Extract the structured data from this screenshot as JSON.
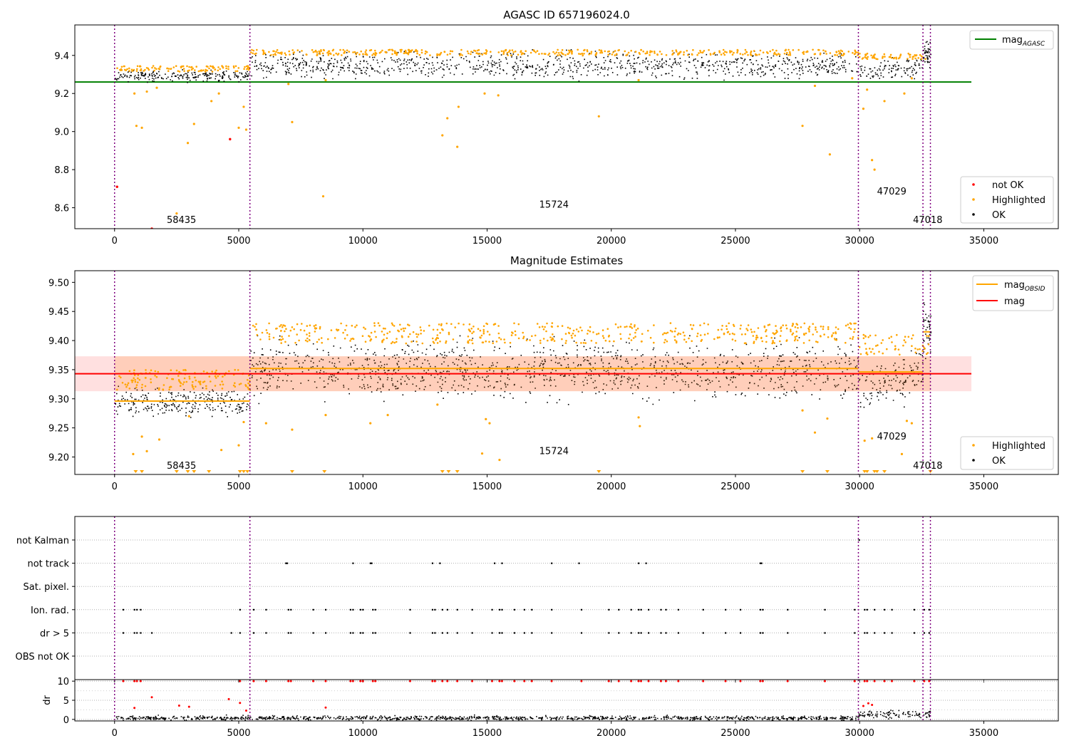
{
  "chart_data": [
    {
      "type": "scatter",
      "title": "AGASC ID 657196024.0",
      "xlabel": "",
      "ylabel": "",
      "xlim": [
        -1600,
        38000
      ],
      "ylim": [
        8.49,
        9.56
      ],
      "xticks": [
        0,
        5000,
        10000,
        15000,
        20000,
        25000,
        30000,
        35000
      ],
      "xtick_labels": [
        "0",
        "5000",
        "10000",
        "15000",
        "20000",
        "25000",
        "30000",
        "35000"
      ],
      "yticks": [
        8.6,
        8.8,
        9.0,
        9.2,
        9.4
      ],
      "ytick_labels": [
        "8.6",
        "8.8",
        "9.0",
        "9.2",
        "9.4"
      ],
      "grid": false,
      "legend_upper": {
        "placement": "upper-right",
        "entries": [
          {
            "label": "mag",
            "subscript": "AGASC",
            "color": "#008000",
            "kind": "line"
          }
        ]
      },
      "legend_lower": {
        "placement": "lower-right",
        "entries": [
          {
            "label": "not OK",
            "color": "#ff0000",
            "kind": "point"
          },
          {
            "label": "Highlighted",
            "color": "#ffa500",
            "kind": "point"
          },
          {
            "label": "OK",
            "color": "#000000",
            "kind": "point"
          }
        ]
      },
      "hlines": [
        {
          "y": 9.26,
          "x_range": [
            -1600,
            34500
          ],
          "color": "#008000"
        }
      ],
      "obs_boundaries": [
        0,
        5450,
        29950,
        32550,
        32850
      ],
      "obsid_labels": [
        {
          "text": "58435",
          "x": 2100,
          "y": 8.52
        },
        {
          "text": "15724",
          "x": 17100,
          "y": 8.6
        },
        {
          "text": "47029",
          "x": 30700,
          "y": 8.67
        },
        {
          "text": "47018",
          "x": 32150,
          "y": 8.52
        }
      ],
      "ok_segments": [
        {
          "x_range": [
            0,
            5450
          ],
          "center": 9.295,
          "spread": 0.03
        },
        {
          "x_range": [
            5450,
            29950
          ],
          "center": 9.35,
          "spread": 0.07
        },
        {
          "x_range": [
            29950,
            32550
          ],
          "center": 9.33,
          "spread": 0.06,
          "slope": 0.04
        },
        {
          "x_range": [
            32550,
            32850
          ],
          "center": 9.41,
          "spread": 0.06
        }
      ],
      "not_ok_points": [
        {
          "x": 100,
          "y": 8.71
        },
        {
          "x": 1500,
          "y": 8.49
        },
        {
          "x": 4650,
          "y": 8.96
        }
      ],
      "highlighted_points": [
        {
          "x": 800,
          "y": 9.2
        },
        {
          "x": 880,
          "y": 9.03
        },
        {
          "x": 1100,
          "y": 9.02
        },
        {
          "x": 1300,
          "y": 9.21
        },
        {
          "x": 1700,
          "y": 9.23
        },
        {
          "x": 2500,
          "y": 8.57
        },
        {
          "x": 2950,
          "y": 8.94
        },
        {
          "x": 3200,
          "y": 9.04
        },
        {
          "x": 3900,
          "y": 9.16
        },
        {
          "x": 4200,
          "y": 9.2
        },
        {
          "x": 5000,
          "y": 9.02
        },
        {
          "x": 5200,
          "y": 9.13
        },
        {
          "x": 5300,
          "y": 9.01
        },
        {
          "x": 7150,
          "y": 9.05
        },
        {
          "x": 7000,
          "y": 9.25
        },
        {
          "x": 8400,
          "y": 8.66
        },
        {
          "x": 8500,
          "y": 9.27
        },
        {
          "x": 13200,
          "y": 8.98
        },
        {
          "x": 13400,
          "y": 9.07
        },
        {
          "x": 13800,
          "y": 8.92
        },
        {
          "x": 13850,
          "y": 9.13
        },
        {
          "x": 14900,
          "y": 9.2
        },
        {
          "x": 15450,
          "y": 9.19
        },
        {
          "x": 19500,
          "y": 9.08
        },
        {
          "x": 21100,
          "y": 9.27
        },
        {
          "x": 27700,
          "y": 9.03
        },
        {
          "x": 28200,
          "y": 9.24
        },
        {
          "x": 28800,
          "y": 8.88
        },
        {
          "x": 29700,
          "y": 9.28
        },
        {
          "x": 30150,
          "y": 9.12
        },
        {
          "x": 30300,
          "y": 9.22
        },
        {
          "x": 30500,
          "y": 8.85
        },
        {
          "x": 30600,
          "y": 8.8
        },
        {
          "x": 31000,
          "y": 9.16
        },
        {
          "x": 31800,
          "y": 9.2
        },
        {
          "x": 32100,
          "y": 9.28
        }
      ]
    },
    {
      "type": "scatter",
      "title": "Magnitude Estimates",
      "xlabel": "",
      "ylabel": "",
      "xlim": [
        -1600,
        38000
      ],
      "ylim": [
        9.17,
        9.52
      ],
      "xticks": [
        0,
        5000,
        10000,
        15000,
        20000,
        25000,
        30000,
        35000
      ],
      "xtick_labels": [
        "0",
        "5000",
        "10000",
        "15000",
        "20000",
        "25000",
        "30000",
        "35000"
      ],
      "yticks": [
        9.2,
        9.25,
        9.3,
        9.35,
        9.4,
        9.45,
        9.5
      ],
      "ytick_labels": [
        "9.20",
        "9.25",
        "9.30",
        "9.35",
        "9.40",
        "9.45",
        "9.50"
      ],
      "grid": false,
      "legend_upper": {
        "placement": "upper-right",
        "entries": [
          {
            "label": "mag",
            "subscript": "OBSID",
            "color": "#ffa500",
            "kind": "line"
          },
          {
            "label": "mag",
            "subscript": "",
            "color": "#ff0000",
            "kind": "line"
          }
        ]
      },
      "legend_lower": {
        "placement": "lower-right",
        "entries": [
          {
            "label": "Highlighted",
            "color": "#ffa500",
            "kind": "point"
          },
          {
            "label": "OK",
            "color": "#000000",
            "kind": "point"
          }
        ]
      },
      "mag_line": {
        "y": 9.343,
        "x_range": [
          -1600,
          34500
        ],
        "band": [
          9.313,
          9.373
        ],
        "color": "#ff0000"
      },
      "obsid_mags": [
        {
          "x_range": [
            0,
            5450
          ],
          "y": 9.296
        },
        {
          "x_range": [
            5450,
            29950
          ],
          "y": 9.352
        },
        {
          "x_range": [
            29950,
            32550
          ],
          "y": 9.346
        },
        {
          "x_range": [
            32550,
            32850
          ],
          "y": 9.415
        }
      ],
      "obs_boundaries": [
        0,
        5450,
        29950,
        32550,
        32850
      ],
      "obsid_labels": [
        {
          "text": "58435",
          "x": 2100,
          "y": 9.18
        },
        {
          "text": "15724",
          "x": 17100,
          "y": 9.205
        },
        {
          "text": "47029",
          "x": 30700,
          "y": 9.23
        },
        {
          "text": "47018",
          "x": 32150,
          "y": 9.18
        }
      ],
      "ok_segments": [
        {
          "x_range": [
            0,
            5450
          ],
          "center": 9.295,
          "spread": 0.025
        },
        {
          "x_range": [
            5450,
            29950
          ],
          "center": 9.35,
          "spread": 0.05
        },
        {
          "x_range": [
            29950,
            32550
          ],
          "center": 9.33,
          "spread": 0.04,
          "slope": 0.04
        },
        {
          "x_range": [
            32550,
            32850
          ],
          "center": 9.42,
          "spread": 0.05
        }
      ],
      "highlighted_points": [
        {
          "x": 750,
          "y": 9.205
        },
        {
          "x": 1100,
          "y": 9.235
        },
        {
          "x": 1300,
          "y": 9.21
        },
        {
          "x": 1800,
          "y": 9.23
        },
        {
          "x": 3000,
          "y": 9.27
        },
        {
          "x": 4300,
          "y": 9.212
        },
        {
          "x": 5000,
          "y": 9.22
        },
        {
          "x": 5200,
          "y": 9.26
        },
        {
          "x": 6100,
          "y": 9.258
        },
        {
          "x": 7150,
          "y": 9.247
        },
        {
          "x": 8500,
          "y": 9.272
        },
        {
          "x": 10300,
          "y": 9.258
        },
        {
          "x": 11000,
          "y": 9.272
        },
        {
          "x": 13000,
          "y": 9.29
        },
        {
          "x": 14800,
          "y": 9.206
        },
        {
          "x": 14950,
          "y": 9.265
        },
        {
          "x": 15100,
          "y": 9.258
        },
        {
          "x": 15500,
          "y": 9.195
        },
        {
          "x": 21100,
          "y": 9.268
        },
        {
          "x": 21150,
          "y": 9.253
        },
        {
          "x": 27700,
          "y": 9.28
        },
        {
          "x": 28200,
          "y": 9.242
        },
        {
          "x": 28700,
          "y": 9.266
        },
        {
          "x": 30200,
          "y": 9.228
        },
        {
          "x": 30500,
          "y": 9.232
        },
        {
          "x": 31700,
          "y": 9.205
        },
        {
          "x": 31900,
          "y": 9.262
        },
        {
          "x": 32100,
          "y": 9.258
        }
      ],
      "clipped_markers_x": [
        850,
        1100,
        2500,
        2950,
        3200,
        3800,
        5050,
        5200,
        5350,
        7150,
        8450,
        13200,
        13450,
        13800,
        19500,
        27700,
        28700,
        30200,
        30300,
        30600,
        30700,
        31000,
        32850
      ]
    },
    {
      "type": "scatter",
      "title": "",
      "xlabel": "",
      "ylabel": "",
      "xlim": [
        -1600,
        38000
      ],
      "xticks": [
        0,
        5000,
        10000,
        15000,
        20000,
        25000,
        30000,
        35000
      ],
      "xtick_labels": [
        "0",
        "5000",
        "10000",
        "15000",
        "20000",
        "25000",
        "30000",
        "35000"
      ],
      "flag_rows": [
        "not Kalman",
        "not track",
        "Sat. pixel.",
        "Ion. rad.",
        "dr > 5",
        "OBS not OK"
      ],
      "grid": true,
      "obs_boundaries": [
        0,
        5450,
        29950,
        32550,
        32850
      ],
      "flag_points": {
        "not Kalman": [
          29980
        ],
        "not track": [
          6900,
          6950,
          9600,
          10300,
          10350,
          12800,
          13100,
          15300,
          15600,
          17600,
          18700,
          21100,
          21400,
          26000,
          26050
        ],
        "Sat. pixel.": [],
        "Ion. rad.": [
          350,
          800,
          900,
          1050,
          5050,
          5600,
          6100,
          7000,
          7100,
          8000,
          8500,
          9500,
          9600,
          9900,
          10000,
          10400,
          10500,
          11900,
          12800,
          12900,
          13200,
          13400,
          13800,
          14400,
          15200,
          15500,
          15600,
          16100,
          16500,
          16800,
          17600,
          18800,
          19900,
          20300,
          20800,
          21100,
          21200,
          21500,
          22000,
          22200,
          22700,
          23700,
          24600,
          25200,
          26000,
          26100,
          27100,
          28600,
          29800,
          30200,
          30300,
          30600,
          31000,
          31300,
          32200,
          32600,
          32800
        ],
        "dr > 5": [
          350,
          800,
          900,
          1050,
          1500,
          4700,
          5050,
          5600,
          6100,
          7000,
          7100,
          8000,
          8500,
          9500,
          9600,
          9900,
          10000,
          10400,
          10500,
          11900,
          12800,
          12900,
          13200,
          13400,
          13800,
          14400,
          15200,
          15500,
          15600,
          16100,
          16500,
          16800,
          17600,
          18800,
          19900,
          20300,
          20800,
          21100,
          21200,
          21500,
          22000,
          22200,
          22700,
          23700,
          24600,
          25200,
          26000,
          26100,
          27100,
          28600,
          29800,
          30200,
          30300,
          30600,
          31000,
          31300,
          32200,
          32600,
          32800
        ],
        "OBS not OK": []
      }
    },
    {
      "type": "scatter",
      "title": "",
      "xlabel": "",
      "ylabel": "dr",
      "xlim": [
        -1600,
        38000
      ],
      "ylim": [
        -0.4,
        10.4
      ],
      "yticks": [
        0,
        5,
        10
      ],
      "ytick_labels": [
        "0",
        "5",
        "10"
      ],
      "xticks": [
        0,
        5000,
        10000,
        15000,
        20000,
        25000,
        30000,
        35000
      ],
      "xtick_labels": [
        "0",
        "5000",
        "10000",
        "15000",
        "20000",
        "25000",
        "30000",
        "35000"
      ],
      "grid": true,
      "obs_boundaries": [
        0,
        5450,
        29950,
        32550,
        32850
      ],
      "ok_segments": [
        {
          "x_range": [
            0,
            29950
          ],
          "center": 0.5,
          "spread": 0.6
        },
        {
          "x_range": [
            29950,
            32850
          ],
          "center": 1.5,
          "spread": 1.0
        }
      ],
      "red_points": [
        {
          "x": 350,
          "y": 10
        },
        {
          "x": 800,
          "y": 10
        },
        {
          "x": 900,
          "y": 10
        },
        {
          "x": 1050,
          "y": 10
        },
        {
          "x": 5050,
          "y": 10
        },
        {
          "x": 5600,
          "y": 10
        },
        {
          "x": 6100,
          "y": 10
        },
        {
          "x": 7000,
          "y": 10
        },
        {
          "x": 7100,
          "y": 10
        },
        {
          "x": 8000,
          "y": 10
        },
        {
          "x": 8500,
          "y": 10
        },
        {
          "x": 9500,
          "y": 10
        },
        {
          "x": 9600,
          "y": 10
        },
        {
          "x": 9900,
          "y": 10
        },
        {
          "x": 10000,
          "y": 10
        },
        {
          "x": 10400,
          "y": 10
        },
        {
          "x": 10500,
          "y": 10
        },
        {
          "x": 11900,
          "y": 10
        },
        {
          "x": 12800,
          "y": 10
        },
        {
          "x": 12900,
          "y": 10
        },
        {
          "x": 13200,
          "y": 10
        },
        {
          "x": 13400,
          "y": 10
        },
        {
          "x": 13800,
          "y": 10
        },
        {
          "x": 14400,
          "y": 10
        },
        {
          "x": 15200,
          "y": 10
        },
        {
          "x": 15500,
          "y": 10
        },
        {
          "x": 15600,
          "y": 10
        },
        {
          "x": 16100,
          "y": 10
        },
        {
          "x": 16500,
          "y": 10
        },
        {
          "x": 16800,
          "y": 10
        },
        {
          "x": 17600,
          "y": 10
        },
        {
          "x": 18800,
          "y": 10
        },
        {
          "x": 19900,
          "y": 10
        },
        {
          "x": 20300,
          "y": 10
        },
        {
          "x": 20800,
          "y": 10
        },
        {
          "x": 21100,
          "y": 10
        },
        {
          "x": 21200,
          "y": 10
        },
        {
          "x": 21500,
          "y": 10
        },
        {
          "x": 22000,
          "y": 10
        },
        {
          "x": 22200,
          "y": 10
        },
        {
          "x": 22700,
          "y": 10
        },
        {
          "x": 23700,
          "y": 10
        },
        {
          "x": 24600,
          "y": 10
        },
        {
          "x": 25200,
          "y": 10
        },
        {
          "x": 26000,
          "y": 10
        },
        {
          "x": 26100,
          "y": 10
        },
        {
          "x": 27100,
          "y": 10
        },
        {
          "x": 28600,
          "y": 10
        },
        {
          "x": 29800,
          "y": 10
        },
        {
          "x": 30200,
          "y": 10
        },
        {
          "x": 30300,
          "y": 10
        },
        {
          "x": 30600,
          "y": 10
        },
        {
          "x": 31000,
          "y": 10
        },
        {
          "x": 31300,
          "y": 10
        },
        {
          "x": 32200,
          "y": 10
        },
        {
          "x": 32600,
          "y": 10
        },
        {
          "x": 32800,
          "y": 10
        },
        {
          "x": 800,
          "y": 3.0
        },
        {
          "x": 1500,
          "y": 5.8
        },
        {
          "x": 2600,
          "y": 3.6
        },
        {
          "x": 3000,
          "y": 3.3
        },
        {
          "x": 4600,
          "y": 5.3
        },
        {
          "x": 5050,
          "y": 4.3
        },
        {
          "x": 5300,
          "y": 2.3
        },
        {
          "x": 8500,
          "y": 3.1
        },
        {
          "x": 30150,
          "y": 3.5
        },
        {
          "x": 30350,
          "y": 4.2
        },
        {
          "x": 30500,
          "y": 3.8
        }
      ]
    }
  ]
}
